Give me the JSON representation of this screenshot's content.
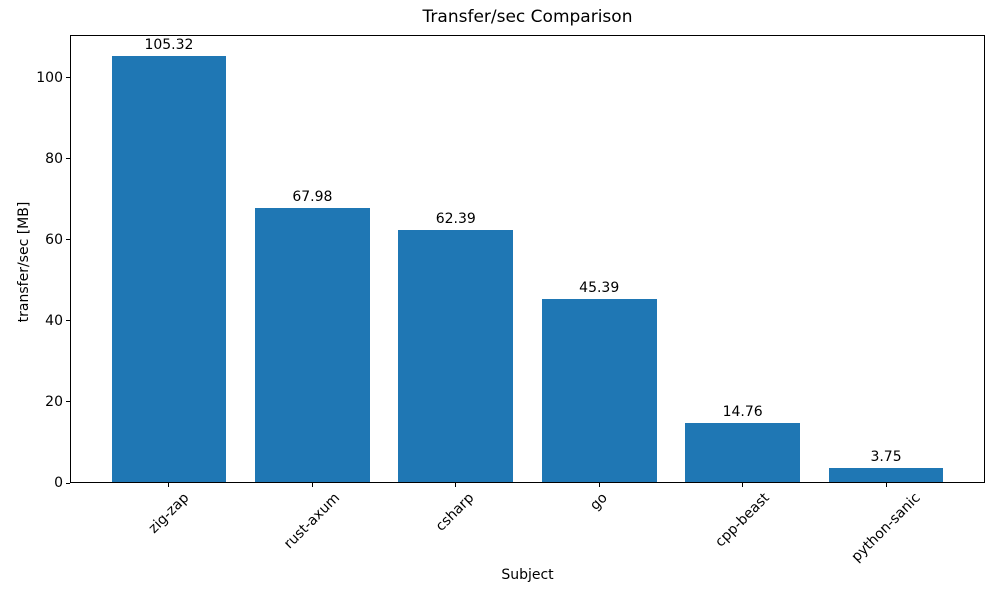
{
  "figure": {
    "background": "#ffffff",
    "axis_color": "#000000"
  },
  "chart_data": {
    "type": "bar",
    "title": "Transfer/sec Comparison",
    "xlabel": "Subject",
    "ylabel": "transfer/sec [MB]",
    "categories": [
      "zig-zap",
      "rust-axum",
      "csharp",
      "go",
      "cpp-beast",
      "python-sanic"
    ],
    "values": [
      105.32,
      67.98,
      62.39,
      45.39,
      14.76,
      3.75
    ],
    "value_labels": [
      "105.32",
      "67.98",
      "62.39",
      "45.39",
      "14.76",
      "3.75"
    ],
    "yticks": [
      0,
      20,
      40,
      60,
      80,
      100
    ],
    "ytick_labels": [
      "0",
      "20",
      "40",
      "60",
      "80",
      "100"
    ],
    "ylim": [
      0,
      110.6
    ],
    "bar_color": "#1f77b4",
    "grid": false,
    "legend_position": "none",
    "x_tick_rotation_deg": 45
  }
}
